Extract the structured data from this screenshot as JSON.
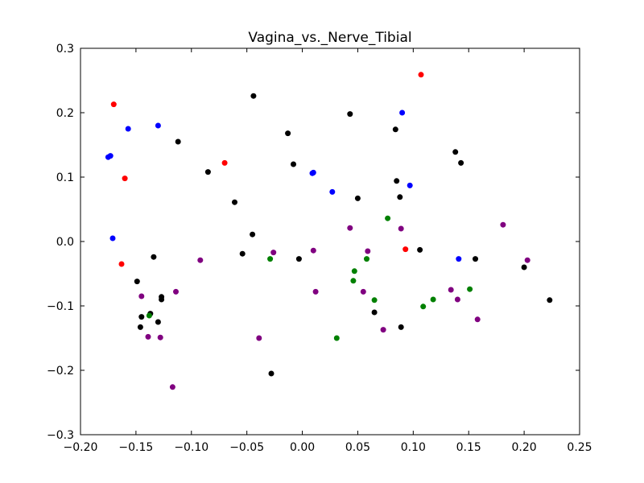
{
  "chart_data": {
    "type": "scatter",
    "title": "Vagina_vs._Nerve_Tibial",
    "xlabel": "",
    "ylabel": "",
    "xlim": [
      -0.2,
      0.25
    ],
    "ylim": [
      -0.3,
      0.3
    ],
    "xticks": [
      "−0.20",
      "−0.15",
      "−0.10",
      "−0.05",
      "0.00",
      "0.05",
      "0.10",
      "0.15",
      "0.20",
      "0.25"
    ],
    "yticks": [
      "−0.3",
      "−0.2",
      "−0.1",
      "0.0",
      "0.1",
      "0.2",
      "0.3"
    ],
    "xtick_values": [
      -0.2,
      -0.15,
      -0.1,
      -0.05,
      0.0,
      0.05,
      0.1,
      0.15,
      0.2,
      0.25
    ],
    "ytick_values": [
      -0.3,
      -0.2,
      -0.1,
      0.0,
      0.1,
      0.2,
      0.3
    ],
    "grid": false,
    "series": [
      {
        "color": "#000000",
        "points": [
          [
            -0.044,
            0.226
          ],
          [
            -0.013,
            0.168
          ],
          [
            0.043,
            0.198
          ],
          [
            0.084,
            0.174
          ],
          [
            -0.112,
            0.155
          ],
          [
            -0.008,
            0.12
          ],
          [
            -0.085,
            0.108
          ],
          [
            -0.061,
            0.061
          ],
          [
            0.085,
            0.094
          ],
          [
            0.138,
            0.139
          ],
          [
            0.143,
            0.122
          ],
          [
            0.088,
            0.069
          ],
          [
            0.05,
            0.067
          ],
          [
            -0.045,
            0.011
          ],
          [
            -0.054,
            -0.019
          ],
          [
            -0.134,
            -0.024
          ],
          [
            -0.003,
            -0.027
          ],
          [
            0.106,
            -0.013
          ],
          [
            0.156,
            -0.027
          ],
          [
            0.2,
            -0.04
          ],
          [
            -0.149,
            -0.062
          ],
          [
            -0.127,
            -0.086
          ],
          [
            -0.127,
            -0.09
          ],
          [
            -0.137,
            -0.112
          ],
          [
            -0.145,
            -0.117
          ],
          [
            -0.13,
            -0.125
          ],
          [
            -0.146,
            -0.133
          ],
          [
            0.065,
            -0.11
          ],
          [
            0.089,
            -0.133
          ],
          [
            -0.028,
            -0.205
          ],
          [
            0.223,
            -0.091
          ]
        ]
      },
      {
        "color": "#0000ff",
        "points": [
          [
            -0.175,
            0.131
          ],
          [
            -0.173,
            0.133
          ],
          [
            -0.157,
            0.175
          ],
          [
            -0.13,
            0.18
          ],
          [
            0.009,
            0.106
          ],
          [
            0.01,
            0.107
          ],
          [
            0.027,
            0.077
          ],
          [
            0.09,
            0.2
          ],
          [
            0.097,
            0.087
          ],
          [
            -0.171,
            0.005
          ],
          [
            0.141,
            -0.027
          ]
        ]
      },
      {
        "color": "#ff0000",
        "points": [
          [
            -0.17,
            0.213
          ],
          [
            -0.16,
            0.098
          ],
          [
            -0.07,
            0.122
          ],
          [
            -0.163,
            -0.035
          ],
          [
            0.107,
            0.259
          ],
          [
            0.093,
            -0.012
          ]
        ]
      },
      {
        "color": "#008000",
        "points": [
          [
            -0.029,
            -0.027
          ],
          [
            0.047,
            -0.046
          ],
          [
            0.046,
            -0.061
          ],
          [
            0.058,
            -0.027
          ],
          [
            0.065,
            -0.091
          ],
          [
            0.077,
            0.036
          ],
          [
            0.118,
            -0.09
          ],
          [
            0.109,
            -0.101
          ],
          [
            0.151,
            -0.074
          ],
          [
            0.031,
            -0.15
          ],
          [
            -0.138,
            -0.115
          ]
        ]
      },
      {
        "color": "#800080",
        "points": [
          [
            -0.092,
            -0.029
          ],
          [
            -0.026,
            -0.017
          ],
          [
            0.01,
            -0.014
          ],
          [
            0.043,
            0.021
          ],
          [
            0.059,
            -0.015
          ],
          [
            0.089,
            0.02
          ],
          [
            0.012,
            -0.078
          ],
          [
            0.055,
            -0.078
          ],
          [
            0.134,
            -0.075
          ],
          [
            0.14,
            -0.09
          ],
          [
            0.181,
            0.026
          ],
          [
            0.203,
            -0.029
          ],
          [
            -0.145,
            -0.085
          ],
          [
            -0.114,
            -0.078
          ],
          [
            -0.139,
            -0.148
          ],
          [
            -0.128,
            -0.149
          ],
          [
            -0.039,
            -0.15
          ],
          [
            -0.117,
            -0.226
          ],
          [
            0.073,
            -0.137
          ],
          [
            0.158,
            -0.121
          ]
        ]
      }
    ]
  }
}
